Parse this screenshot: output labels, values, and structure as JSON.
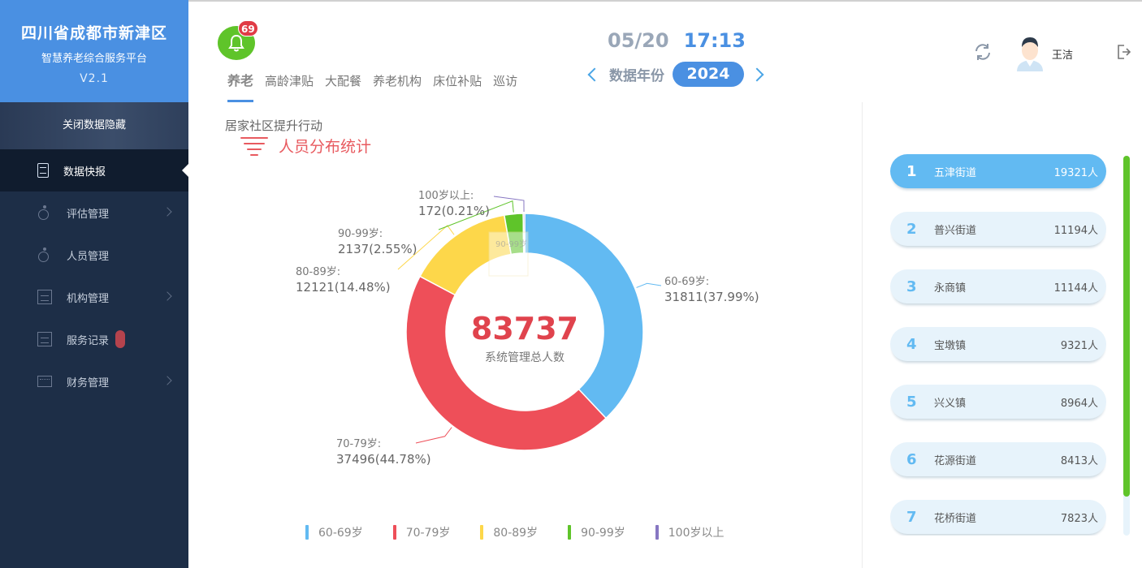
{
  "sidebar": {
    "title": "四川省成都市新津区",
    "subtitle": "智慧养老综合服务平台",
    "version": "V2.1",
    "toggle_label": "关闭数据隐藏",
    "items": [
      {
        "label": "数据快报",
        "icon": "document-icon"
      },
      {
        "label": "评估管理",
        "icon": "wheelchair-icon"
      },
      {
        "label": "人员管理",
        "icon": "wheelchair-icon"
      },
      {
        "label": "机构管理",
        "icon": "building-icon"
      },
      {
        "label": "服务记录",
        "icon": "building-icon"
      },
      {
        "label": "财务管理",
        "icon": "finance-icon"
      }
    ]
  },
  "header": {
    "notification_count": "69",
    "tabs": [
      "养老",
      "高龄津贴",
      "大配餐",
      "养老机构",
      "床位补贴",
      "巡访"
    ],
    "date": "05/20",
    "time": "17:13",
    "year_label": "数据年份",
    "year": "2024",
    "user_name": "王洁"
  },
  "main": {
    "section_label": "居家社区提升行动",
    "section_title": "人员分布统计",
    "total": "83737",
    "total_label": "系统管理总人数"
  },
  "chart_data": {
    "type": "pie",
    "title": "人员分布统计",
    "categories": [
      "60-69岁",
      "70-79岁",
      "80-89岁",
      "90-99岁",
      "100岁以上"
    ],
    "values": [
      31811,
      37496,
      12121,
      2137,
      172
    ],
    "percent_labels": [
      "31811(37.99%)",
      "37496(44.78%)",
      "12121(14.48%)",
      "2137(2.55%)",
      "172(0.21%)"
    ],
    "colors": [
      "#62baf2",
      "#ee4f59",
      "#fdd74a",
      "#5fc42a",
      "#8777c2"
    ],
    "legend_position": "bottom"
  },
  "ranking": [
    {
      "rank": "1",
      "name": "五津街道",
      "value": "19321人"
    },
    {
      "rank": "2",
      "name": "普兴街道",
      "value": "11194人"
    },
    {
      "rank": "3",
      "name": "永商镇",
      "value": "11144人"
    },
    {
      "rank": "4",
      "name": "宝墩镇",
      "value": "9321人"
    },
    {
      "rank": "5",
      "name": "兴义镇",
      "value": "8964人"
    },
    {
      "rank": "6",
      "name": "花源街道",
      "value": "8413人"
    },
    {
      "rank": "7",
      "name": "花桥街道",
      "value": "7823人"
    }
  ]
}
